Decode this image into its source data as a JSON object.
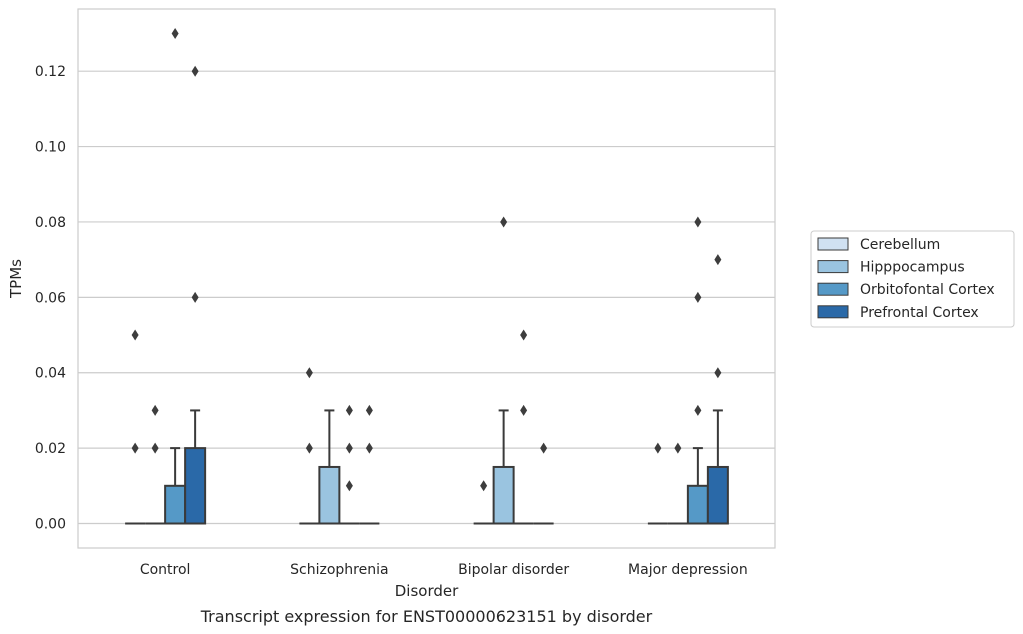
{
  "chart_data": {
    "type": "box",
    "title": "",
    "caption": "Transcript expression for ENST00000623151 by disorder",
    "xlabel": "Disorder",
    "ylabel": "TPMs",
    "ylim": [
      -0.0065,
      0.1365
    ],
    "yticks": [
      "0.00",
      "0.02",
      "0.04",
      "0.06",
      "0.08",
      "0.10",
      "0.12"
    ],
    "categories": [
      "Control",
      "Schizophrenia",
      "Bipolar disorder",
      "Major depression"
    ],
    "grid": "horizontal",
    "legend_position": "right",
    "series": [
      {
        "name": "Cerebellum",
        "color": "#d0e1f2",
        "boxes": [
          {
            "q1": 0,
            "median": 0,
            "q3": 0,
            "whisker_low": 0,
            "whisker_high": 0,
            "outliers": [
              0.02,
              0.05
            ]
          },
          {
            "q1": 0,
            "median": 0,
            "q3": 0,
            "whisker_low": 0,
            "whisker_high": 0,
            "outliers": [
              0.02,
              0.04
            ]
          },
          {
            "q1": 0,
            "median": 0,
            "q3": 0,
            "whisker_low": 0,
            "whisker_high": 0,
            "outliers": [
              0.01
            ]
          },
          {
            "q1": 0,
            "median": 0,
            "q3": 0,
            "whisker_low": 0,
            "whisker_high": 0,
            "outliers": [
              0.02
            ]
          }
        ]
      },
      {
        "name": "Hipppocampus",
        "color": "#9ac4e0",
        "boxes": [
          {
            "q1": 0,
            "median": 0,
            "q3": 0,
            "whisker_low": 0,
            "whisker_high": 0,
            "outliers": [
              0.02,
              0.03
            ]
          },
          {
            "q1": 0,
            "median": 0,
            "q3": 0.015,
            "whisker_low": 0,
            "whisker_high": 0.03,
            "outliers": []
          },
          {
            "q1": 0,
            "median": 0,
            "q3": 0.015,
            "whisker_low": 0,
            "whisker_high": 0.03,
            "outliers": [
              0.08
            ]
          },
          {
            "q1": 0,
            "median": 0,
            "q3": 0,
            "whisker_low": 0,
            "whisker_high": 0,
            "outliers": [
              0.02
            ]
          }
        ]
      },
      {
        "name": "Orbitofontal Cortex",
        "color": "#5599c7",
        "boxes": [
          {
            "q1": 0,
            "median": 0,
            "q3": 0.01,
            "whisker_low": 0,
            "whisker_high": 0.02,
            "outliers": [
              0.13
            ]
          },
          {
            "q1": 0,
            "median": 0,
            "q3": 0,
            "whisker_low": 0,
            "whisker_high": 0,
            "outliers": [
              0.01,
              0.02,
              0.03
            ]
          },
          {
            "q1": 0,
            "median": 0,
            "q3": 0,
            "whisker_low": 0,
            "whisker_high": 0,
            "outliers": [
              0.03,
              0.05
            ]
          },
          {
            "q1": 0,
            "median": 0,
            "q3": 0.01,
            "whisker_low": 0,
            "whisker_high": 0.02,
            "outliers": [
              0.03,
              0.06,
              0.08
            ]
          }
        ]
      },
      {
        "name": "Prefrontal Cortex",
        "color": "#2a69a8",
        "boxes": [
          {
            "q1": 0,
            "median": 0,
            "q3": 0.02,
            "whisker_low": 0,
            "whisker_high": 0.03,
            "outliers": [
              0.06,
              0.12
            ]
          },
          {
            "q1": 0,
            "median": 0,
            "q3": 0,
            "whisker_low": 0,
            "whisker_high": 0,
            "outliers": [
              0.02,
              0.03
            ]
          },
          {
            "q1": 0,
            "median": 0,
            "q3": 0,
            "whisker_low": 0,
            "whisker_high": 0,
            "outliers": [
              0.02
            ]
          },
          {
            "q1": 0,
            "median": 0,
            "q3": 0.015,
            "whisker_low": 0,
            "whisker_high": 0.03,
            "outliers": [
              0.04,
              0.07
            ]
          }
        ]
      }
    ]
  }
}
